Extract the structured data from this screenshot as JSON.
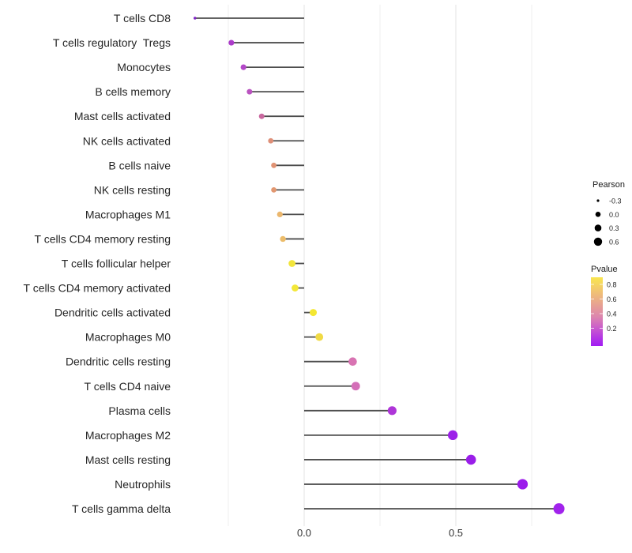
{
  "chart_data": {
    "type": "scatter",
    "variant": "lollipop",
    "title": "",
    "xlabel": "",
    "ylabel": "",
    "xlim": [
      -0.44,
      0.93
    ],
    "grid": "vertical-only",
    "legend_position": "right",
    "categories": [
      "T cells CD8",
      "T cells regulatory  Tregs",
      "Monocytes",
      "B cells memory",
      "Mast cells activated",
      "NK cells activated",
      "B cells naive",
      "NK cells resting",
      "Macrophages M1",
      "T cells CD4 memory resting",
      "T cells follicular helper",
      "T cells CD4 memory activated",
      "Dendritic cells activated",
      "Macrophages M0",
      "Dendritic cells resting",
      "T cells CD4 naive",
      "Plasma cells",
      "Macrophages M2",
      "Mast cells resting",
      "Neutrophils",
      "T cells gamma delta"
    ],
    "values": [
      -0.36,
      -0.24,
      -0.2,
      -0.18,
      -0.14,
      -0.11,
      -0.1,
      -0.1,
      -0.08,
      -0.07,
      -0.04,
      -0.03,
      0.03,
      0.05,
      0.16,
      0.17,
      0.29,
      0.49,
      0.55,
      0.72,
      0.84
    ],
    "points": [
      {
        "label": "T cells CD8",
        "pearson": -0.36,
        "dot_color": "#7D22C3",
        "dot_radius": 1.7
      },
      {
        "label": "T cells regulatory  Tregs",
        "pearson": -0.24,
        "dot_color": "#AC3CCA",
        "dot_radius": 3.6
      },
      {
        "label": "Monocytes",
        "pearson": -0.2,
        "dot_color": "#B348C8",
        "dot_radius": 3.6
      },
      {
        "label": "B cells memory",
        "pearson": -0.18,
        "dot_color": "#BA53C0",
        "dot_radius": 3.5
      },
      {
        "label": "Mast cells activated",
        "pearson": -0.14,
        "dot_color": "#C9689F",
        "dot_radius": 3.5
      },
      {
        "label": "NK cells activated",
        "pearson": -0.11,
        "dot_color": "#DE8F78",
        "dot_radius": 3.4
      },
      {
        "label": "B cells naive",
        "pearson": -0.1,
        "dot_color": "#E09374",
        "dot_radius": 3.4
      },
      {
        "label": "NK cells resting",
        "pearson": -0.1,
        "dot_color": "#E29770",
        "dot_radius": 3.4
      },
      {
        "label": "Macrophages M1",
        "pearson": -0.08,
        "dot_color": "#EBB76E",
        "dot_radius": 3.6
      },
      {
        "label": "T cells CD4 memory resting",
        "pearson": -0.07,
        "dot_color": "#ECBC6A",
        "dot_radius": 3.7
      },
      {
        "label": "T cells follicular helper",
        "pearson": -0.04,
        "dot_color": "#F2E53C",
        "dot_radius": 4.4
      },
      {
        "label": "T cells CD4 memory activated",
        "pearson": -0.03,
        "dot_color": "#F3E738",
        "dot_radius": 4.4
      },
      {
        "label": "Dendritic cells activated",
        "pearson": 0.03,
        "dot_color": "#F4E732",
        "dot_radius": 4.5
      },
      {
        "label": "Macrophages M0",
        "pearson": 0.05,
        "dot_color": "#F0DA45",
        "dot_radius": 4.9
      },
      {
        "label": "Dendritic cells resting",
        "pearson": 0.16,
        "dot_color": "#D873B2",
        "dot_radius": 5.3
      },
      {
        "label": "T cells CD4 naive",
        "pearson": 0.17,
        "dot_color": "#D46FB8",
        "dot_radius": 5.4
      },
      {
        "label": "Plasma cells",
        "pearson": 0.29,
        "dot_color": "#AE35D8",
        "dot_radius": 5.6
      },
      {
        "label": "Macrophages M2",
        "pearson": 0.49,
        "dot_color": "#9C20E8",
        "dot_radius": 6.2
      },
      {
        "label": "Mast cells resting",
        "pearson": 0.55,
        "dot_color": "#9A1EE9",
        "dot_radius": 6.3
      },
      {
        "label": "Neutrophils",
        "pearson": 0.72,
        "dot_color": "#9B1BEB",
        "dot_radius": 6.6
      },
      {
        "label": "T cells gamma delta",
        "pearson": 0.84,
        "dot_color": "#A123EC",
        "dot_radius": 7.0
      }
    ],
    "x_axis": {
      "ticks": [
        {
          "value": 0.0,
          "label": "0.0"
        },
        {
          "value": 0.5,
          "label": "0.5"
        }
      ],
      "major_gridlines": [
        0.0,
        0.5
      ],
      "minor_gridlines": [
        -0.25,
        0.25,
        0.75
      ]
    },
    "legend": {
      "size": {
        "title": "Pearson",
        "entries": [
          {
            "label": "-0.3",
            "radius": 1.6
          },
          {
            "label": "0.0",
            "radius": 3.3
          },
          {
            "label": "0.3",
            "radius": 4.3
          },
          {
            "label": "0.6",
            "radius": 5.2
          }
        ],
        "dot_color": "#000000"
      },
      "color": {
        "title": "Pvalue",
        "tick_labels": [
          "0.8",
          "0.6",
          "0.4",
          "0.2"
        ],
        "gradient_stops": [
          {
            "offset": 0.0,
            "color": "#F9E64E"
          },
          {
            "offset": 0.22,
            "color": "#F0C176"
          },
          {
            "offset": 0.42,
            "color": "#E69E95"
          },
          {
            "offset": 0.58,
            "color": "#DC85AF"
          },
          {
            "offset": 0.72,
            "color": "#CC61C9"
          },
          {
            "offset": 0.87,
            "color": "#B539E3"
          },
          {
            "offset": 1.0,
            "color": "#A11CF3"
          }
        ]
      }
    },
    "style": {
      "background": "#ffffff",
      "stem_color": "#4d4d4d",
      "grid_major_color": "#e3e3e3",
      "grid_minor_color": "#efefef",
      "label_color": "#262626",
      "axis_text_color": "#333333"
    }
  }
}
